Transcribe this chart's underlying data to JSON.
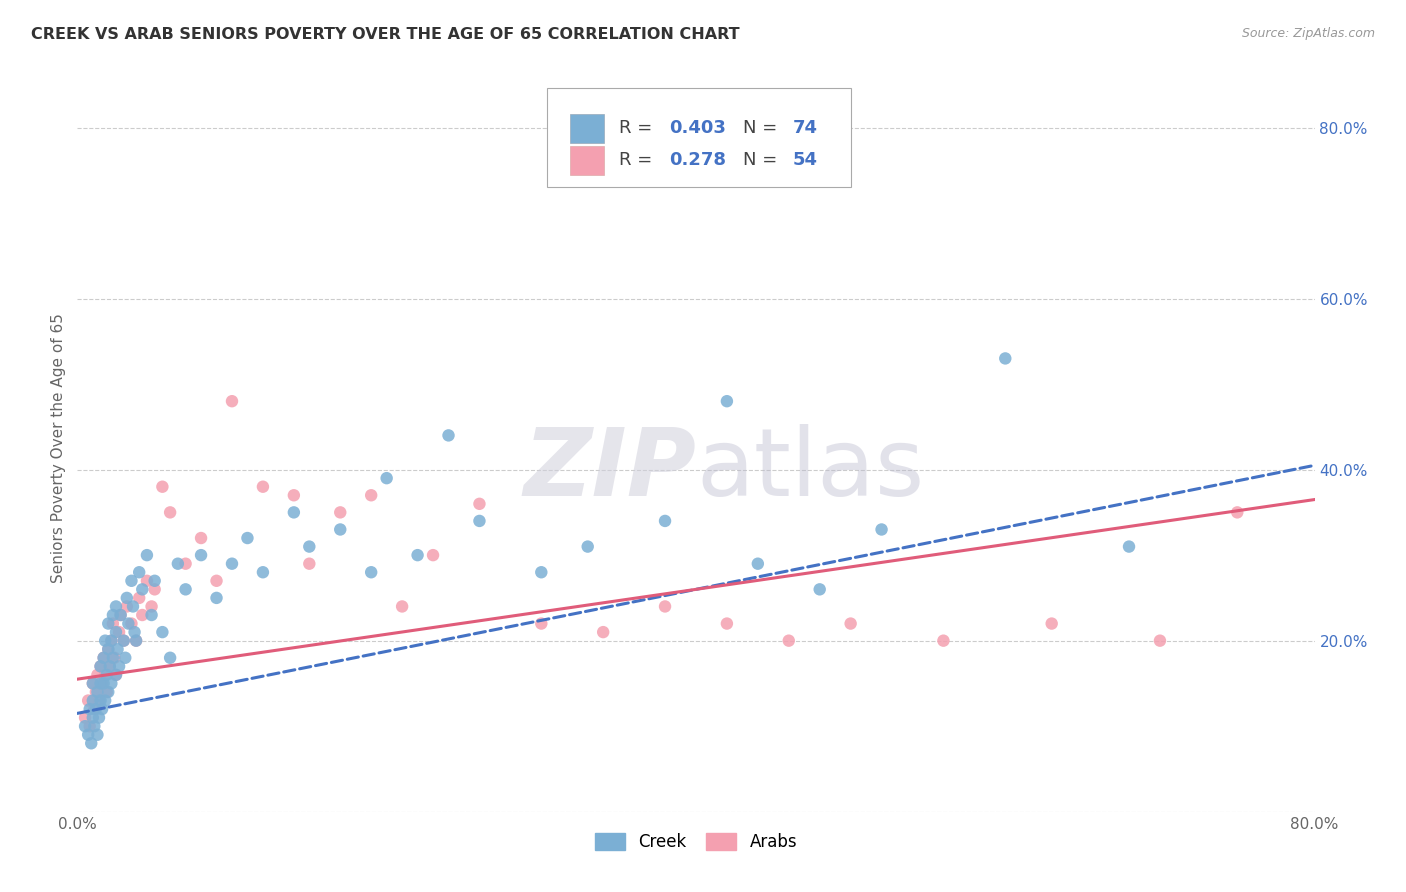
{
  "title": "CREEK VS ARAB SENIORS POVERTY OVER THE AGE OF 65 CORRELATION CHART",
  "source": "Source: ZipAtlas.com",
  "ylabel": "Seniors Poverty Over the Age of 65",
  "xlim": [
    0.0,
    0.8
  ],
  "ylim": [
    0.0,
    0.85
  ],
  "xticks": [
    0.0,
    0.1,
    0.2,
    0.3,
    0.4,
    0.5,
    0.6,
    0.7,
    0.8
  ],
  "yticks": [
    0.0,
    0.2,
    0.4,
    0.6,
    0.8
  ],
  "background_color": "#ffffff",
  "grid_color": "#cccccc",
  "creek_color": "#7bafd4",
  "arab_color": "#f4a0b0",
  "creek_line_color": "#4472c4",
  "arab_line_color": "#e05c7a",
  "creek_R": 0.403,
  "creek_N": 74,
  "arab_R": 0.278,
  "arab_N": 54,
  "watermark_zip": "ZIP",
  "watermark_atlas": "atlas",
  "creek_x": [
    0.005,
    0.007,
    0.008,
    0.009,
    0.01,
    0.01,
    0.01,
    0.011,
    0.012,
    0.013,
    0.013,
    0.014,
    0.015,
    0.015,
    0.015,
    0.016,
    0.017,
    0.017,
    0.018,
    0.018,
    0.019,
    0.02,
    0.02,
    0.02,
    0.021,
    0.022,
    0.022,
    0.023,
    0.023,
    0.025,
    0.025,
    0.025,
    0.026,
    0.027,
    0.028,
    0.03,
    0.031,
    0.032,
    0.033,
    0.035,
    0.036,
    0.037,
    0.038,
    0.04,
    0.042,
    0.045,
    0.048,
    0.05,
    0.055,
    0.06,
    0.065,
    0.07,
    0.08,
    0.09,
    0.1,
    0.11,
    0.12,
    0.14,
    0.15,
    0.17,
    0.19,
    0.2,
    0.22,
    0.24,
    0.26,
    0.3,
    0.33,
    0.38,
    0.42,
    0.44,
    0.48,
    0.52,
    0.6,
    0.68
  ],
  "creek_y": [
    0.1,
    0.09,
    0.12,
    0.08,
    0.11,
    0.13,
    0.15,
    0.1,
    0.12,
    0.09,
    0.14,
    0.11,
    0.15,
    0.13,
    0.17,
    0.12,
    0.15,
    0.18,
    0.13,
    0.2,
    0.16,
    0.14,
    0.19,
    0.22,
    0.17,
    0.15,
    0.2,
    0.18,
    0.23,
    0.16,
    0.21,
    0.24,
    0.19,
    0.17,
    0.23,
    0.2,
    0.18,
    0.25,
    0.22,
    0.27,
    0.24,
    0.21,
    0.2,
    0.28,
    0.26,
    0.3,
    0.23,
    0.27,
    0.21,
    0.18,
    0.29,
    0.26,
    0.3,
    0.25,
    0.29,
    0.32,
    0.28,
    0.35,
    0.31,
    0.33,
    0.28,
    0.39,
    0.3,
    0.44,
    0.34,
    0.28,
    0.31,
    0.34,
    0.48,
    0.29,
    0.26,
    0.33,
    0.53,
    0.31
  ],
  "arab_x": [
    0.005,
    0.007,
    0.008,
    0.01,
    0.011,
    0.012,
    0.013,
    0.014,
    0.015,
    0.016,
    0.017,
    0.018,
    0.019,
    0.02,
    0.021,
    0.022,
    0.023,
    0.024,
    0.025,
    0.027,
    0.028,
    0.03,
    0.032,
    0.035,
    0.038,
    0.04,
    0.042,
    0.045,
    0.048,
    0.05,
    0.055,
    0.06,
    0.07,
    0.08,
    0.09,
    0.1,
    0.12,
    0.14,
    0.15,
    0.17,
    0.19,
    0.21,
    0.23,
    0.26,
    0.3,
    0.34,
    0.38,
    0.42,
    0.46,
    0.5,
    0.56,
    0.63,
    0.7,
    0.75
  ],
  "arab_y": [
    0.11,
    0.13,
    0.1,
    0.15,
    0.12,
    0.14,
    0.16,
    0.13,
    0.17,
    0.15,
    0.18,
    0.16,
    0.14,
    0.19,
    0.17,
    0.2,
    0.22,
    0.18,
    0.16,
    0.21,
    0.23,
    0.2,
    0.24,
    0.22,
    0.2,
    0.25,
    0.23,
    0.27,
    0.24,
    0.26,
    0.38,
    0.35,
    0.29,
    0.32,
    0.27,
    0.48,
    0.38,
    0.37,
    0.29,
    0.35,
    0.37,
    0.24,
    0.3,
    0.36,
    0.22,
    0.21,
    0.24,
    0.22,
    0.2,
    0.22,
    0.2,
    0.22,
    0.2,
    0.35
  ],
  "creek_line_x0": 0.0,
  "creek_line_y0": 0.115,
  "creek_line_x1": 0.8,
  "creek_line_y1": 0.405,
  "arab_line_x0": 0.0,
  "arab_line_y0": 0.155,
  "arab_line_x1": 0.8,
  "arab_line_y1": 0.365
}
